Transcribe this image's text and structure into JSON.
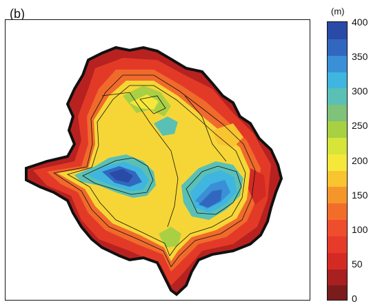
{
  "panel_label": "(b)",
  "colorbar": {
    "unit": "(m)",
    "min": 0,
    "max": 400,
    "step": 25,
    "tick_labels": [
      "0",
      "50",
      "100",
      "150",
      "200",
      "250",
      "300",
      "350",
      "400"
    ],
    "tick_values": [
      0,
      50,
      100,
      150,
      200,
      250,
      300,
      350,
      400
    ],
    "colors": [
      "#7a1c1c",
      "#a8201f",
      "#d42a24",
      "#e63a2a",
      "#ee4d2e",
      "#f26d2a",
      "#f5962b",
      "#f8c430",
      "#f6e83a",
      "#d7e43a",
      "#a7d042",
      "#7fc27a",
      "#5ac0b5",
      "#3fb5e0",
      "#3a8fd6",
      "#3267c0",
      "#2a4aa8"
    ]
  }
}
